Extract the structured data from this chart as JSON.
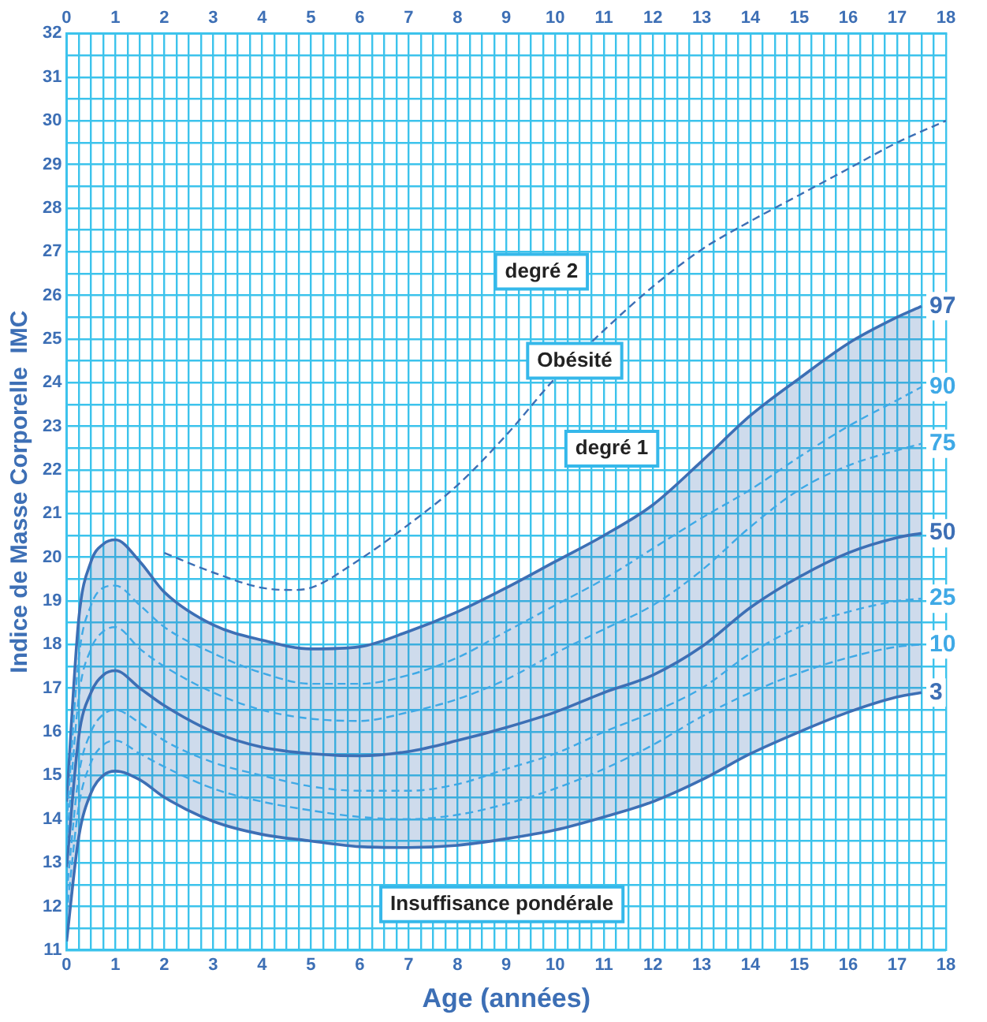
{
  "chart_data": {
    "type": "line",
    "xlabel": "Age (années)",
    "ylabel": "Indice de Masse Corporelle  IMC",
    "x": [
      0,
      0.25,
      0.5,
      0.75,
      1,
      1.5,
      2,
      3,
      4,
      5,
      6,
      7,
      8,
      9,
      10,
      11,
      12,
      13,
      14,
      15,
      16,
      17,
      17.5
    ],
    "series": [
      {
        "color": "#3d6fb5",
        "line_style": "dashed",
        "x": [
          2,
          3,
          4,
          4.6,
          5,
          6,
          7,
          8,
          9,
          10,
          11,
          12,
          13,
          14,
          15,
          16,
          17,
          18
        ],
        "values": [
          20.1,
          19.65,
          19.3,
          19.25,
          19.3,
          19.95,
          20.75,
          21.65,
          22.8,
          24.1,
          25.2,
          26.2,
          27.05,
          27.7,
          28.3,
          28.9,
          29.5,
          30.0
        ]
      },
      {
        "name": "97",
        "type": "area",
        "color": "#3d6fb5",
        "line_style": "solid",
        "values": [
          14.4,
          18.6,
          19.9,
          20.3,
          20.4,
          19.9,
          19.2,
          18.45,
          18.1,
          17.9,
          17.95,
          18.3,
          18.75,
          19.3,
          19.9,
          20.5,
          21.2,
          22.2,
          23.25,
          24.1,
          24.9,
          25.5,
          25.75
        ]
      },
      {
        "name": "90",
        "color": "#3fa9e6",
        "line_style": "dashed",
        "values": [
          13.9,
          17.7,
          18.9,
          19.3,
          19.35,
          18.9,
          18.4,
          17.8,
          17.35,
          17.1,
          17.1,
          17.3,
          17.7,
          18.3,
          18.9,
          19.5,
          20.2,
          20.9,
          21.55,
          22.3,
          23.0,
          23.6,
          23.9
        ]
      },
      {
        "name": "75",
        "color": "#3fa9e6",
        "line_style": "dashed",
        "values": [
          13.4,
          16.8,
          17.9,
          18.3,
          18.4,
          17.9,
          17.5,
          16.9,
          16.5,
          16.3,
          16.25,
          16.45,
          16.75,
          17.2,
          17.8,
          18.35,
          18.9,
          19.7,
          20.7,
          21.55,
          22.1,
          22.45,
          22.6
        ]
      },
      {
        "name": "50",
        "color": "#3d6fb5",
        "line_style": "solid",
        "values": [
          12.9,
          15.9,
          16.9,
          17.3,
          17.4,
          17.0,
          16.6,
          16.0,
          15.65,
          15.5,
          15.45,
          15.55,
          15.8,
          16.1,
          16.45,
          16.9,
          17.3,
          17.95,
          18.85,
          19.55,
          20.1,
          20.45,
          20.55
        ]
      },
      {
        "name": "25",
        "color": "#3fa9e6",
        "line_style": "dashed",
        "values": [
          12.3,
          15.0,
          16.0,
          16.4,
          16.5,
          16.2,
          15.8,
          15.3,
          15.0,
          14.75,
          14.65,
          14.65,
          14.8,
          15.15,
          15.5,
          16.0,
          16.45,
          17.0,
          17.8,
          18.4,
          18.75,
          19.0,
          19.05
        ]
      },
      {
        "name": "10",
        "color": "#3fa9e6",
        "line_style": "dashed",
        "values": [
          11.8,
          14.3,
          15.3,
          15.7,
          15.8,
          15.5,
          15.2,
          14.7,
          14.4,
          14.2,
          14.05,
          14.0,
          14.1,
          14.35,
          14.7,
          15.15,
          15.7,
          16.35,
          16.9,
          17.35,
          17.7,
          17.95,
          18.0
        ]
      },
      {
        "name": "3",
        "color": "#3d6fb5",
        "line_style": "solid",
        "values": [
          11.2,
          13.6,
          14.6,
          15.0,
          15.1,
          14.9,
          14.5,
          13.95,
          13.65,
          13.5,
          13.37,
          13.35,
          13.4,
          13.55,
          13.75,
          14.05,
          14.4,
          14.9,
          15.5,
          16.0,
          16.45,
          16.8,
          16.9
        ]
      }
    ],
    "annotations": [
      "degré 2",
      {
        "text": "Obésité",
        "x": 10.4,
        "y": 24.5
      },
      "degré 1",
      "Insuffisance pondérale"
    ],
    "marker": "none",
    "grid": true,
    "legend": false,
    "xlim": [
      0,
      18
    ],
    "x2lim": [
      0,
      18
    ],
    "xticks": [
      0,
      {
        "value": 0.25,
        "label": null
      },
      {
        "value": 0.5,
        "label": null
      },
      {
        "value": 0.75,
        "label": null
      },
      1,
      {
        "value": 1.25,
        "label": null
      },
      {
        "value": 1.5,
        "label": null
      },
      {
        "value": 1.75,
        "label": null
      },
      2,
      {
        "value": 2.25,
        "label": null
      },
      {
        "value": 2.5,
        "label": null
      },
      {
        "value": 2.75,
        "label": null
      },
      3,
      {
        "value": 3.25,
        "label": null
      },
      {
        "value": 3.5,
        "label": null
      },
      {
        "value": 3.75,
        "label": null
      },
      4,
      {
        "value": 4.25,
        "label": null
      },
      {
        "value": 4.5,
        "label": null
      },
      {
        "value": 4.75,
        "label": null
      },
      5,
      {
        "value": 5.25,
        "label": null
      },
      {
        "value": 5.5,
        "label": null
      },
      {
        "value": 5.75,
        "label": null
      },
      6,
      {
        "value": 6.25,
        "label": null
      },
      {
        "value": 6.5,
        "label": null
      },
      {
        "value": 6.75,
        "label": null
      },
      7,
      {
        "value": 7.25,
        "label": null
      },
      {
        "value": 7.5,
        "label": null
      },
      {
        "value": 7.75,
        "label": null
      },
      8,
      {
        "value": 8.25,
        "label": null
      },
      {
        "value": 8.5,
        "label": null
      },
      {
        "value": 8.75,
        "label": null
      },
      9,
      {
        "value": 9.25,
        "label": null
      },
      {
        "value": 9.5,
        "label": null
      },
      {
        "value": 9.75,
        "label": null
      },
      10,
      {
        "value": 10.25,
        "label": null
      },
      {
        "value": 10.5,
        "label": null
      },
      {
        "value": 10.75,
        "label": null
      },
      11,
      {
        "value": 11.25,
        "label": null
      },
      {
        "value": 11.5,
        "label": null
      },
      {
        "value": 11.75,
        "label": null
      },
      12,
      {
        "value": 12.25,
        "label": null
      },
      {
        "value": 12.5,
        "label": null
      },
      {
        "value": 12.75,
        "label": null
      },
      13,
      {
        "value": 13.25,
        "label": null
      },
      {
        "value": 13.5,
        "label": null
      },
      {
        "value": 13.75,
        "label": null
      },
      14,
      {
        "value": 14.25,
        "label": null
      },
      {
        "value": 14.5,
        "label": null
      },
      {
        "value": 14.75,
        "label": null
      },
      15,
      {
        "value": 15.25,
        "label": null
      },
      {
        "value": 15.5,
        "label": null
      },
      {
        "value": 15.75,
        "label": null
      },
      16,
      {
        "value": 16.25,
        "label": null
      },
      {
        "value": 16.5,
        "label": null
      },
      {
        "value": 16.75,
        "label": null
      },
      17,
      {
        "value": 17.25,
        "label": null
      },
      {
        "value": 17.5,
        "label": null
      },
      {
        "value": 17.75,
        "label": null
      },
      18
    ],
    "x2ticks": [
      0,
      1,
      2,
      3,
      4,
      5,
      6,
      7,
      8,
      9,
      10,
      11,
      12,
      13,
      14,
      15,
      16,
      17,
      18
    ],
    "ylim": [
      11,
      32
    ],
    "yticks": [
      11,
      {
        "value": 11.5,
        "label": null
      },
      12,
      {
        "value": 12.5,
        "label": null
      },
      13,
      {
        "value": 13.5,
        "label": null
      },
      14,
      {
        "value": 14.5,
        "label": null
      },
      15,
      {
        "value": 15.5,
        "label": null
      },
      16,
      {
        "value": 16.5,
        "label": null
      },
      17,
      {
        "value": 17.5,
        "label": null
      },
      18,
      {
        "value": 18.5,
        "label": null
      },
      19,
      {
        "value": 19.5,
        "label": null
      },
      20,
      {
        "value": 20.5,
        "label": null
      },
      21,
      {
        "value": 21.5,
        "label": null
      },
      22,
      {
        "value": 22.5,
        "label": null
      },
      23,
      {
        "value": 23.5,
        "label": null
      },
      24,
      {
        "value": 24.5,
        "label": null
      },
      25,
      {
        "value": 25.5,
        "label": null
      },
      26,
      {
        "value": 26.5,
        "label": null
      },
      27,
      {
        "value": 27.5,
        "label": null
      },
      28,
      {
        "value": 28.5,
        "label": null
      },
      29,
      {
        "value": 29.5,
        "label": null
      },
      30,
      {
        "value": 30.5,
        "label": null
      },
      31,
      {
        "value": 31.5,
        "label": null
      },
      32
    ]
  }
}
